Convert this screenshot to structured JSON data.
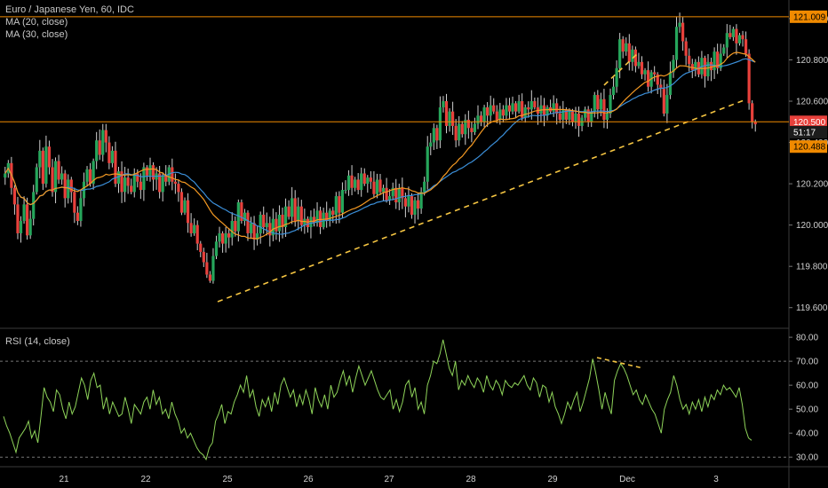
{
  "legend": {
    "title": "Euro / Japanese Yen, 60, IDC",
    "ma20": "MA (20, close)",
    "ma30": "MA (30, close)",
    "rsi": "RSI (14, close)"
  },
  "colors": {
    "up": "#26a65b",
    "down": "#e8413c",
    "ma20": "#f59a23",
    "ma30": "#3b8fd9",
    "hline": "#f08a00",
    "rsi": "#8fd45a",
    "trend": "#f5c542"
  },
  "chart_data": [
    {
      "type": "candlestick",
      "title": "Euro / Japanese Yen, 60, IDC",
      "ylim": [
        119.5,
        121.09
      ],
      "y_ticks": [
        "121.000",
        "120.800",
        "120.600",
        "120.400",
        "120.200",
        "120.000",
        "119.800",
        "119.600"
      ],
      "x_ticks": [
        "21",
        "22",
        "25",
        "26",
        "27",
        "28",
        "29",
        "Dec",
        "3"
      ],
      "horizontal_lines": [
        121.009,
        120.5
      ],
      "price_badges": [
        {
          "label": "121.009",
          "value": 121.009,
          "style": "orange"
        },
        {
          "label": "120.500",
          "value": 120.5,
          "style": "red"
        },
        {
          "label": "51:17",
          "value": 120.45,
          "style": "dark"
        },
        {
          "label": "120.488",
          "value": 120.38,
          "style": "orange"
        }
      ],
      "series": [
        {
          "name": "MA (20, close)"
        },
        {
          "name": "MA (30, close)"
        }
      ],
      "closes": [
        120.25,
        120.3,
        120.18,
        120.1,
        119.96,
        120.02,
        120.1,
        119.95,
        120.03,
        120.16,
        120.28,
        120.36,
        120.2,
        120.38,
        120.28,
        120.16,
        120.31,
        120.22,
        120.25,
        120.13,
        120.22,
        120.16,
        120.06,
        120.02,
        120.13,
        120.21,
        120.27,
        120.2,
        120.31,
        120.41,
        120.34,
        120.46,
        120.4,
        120.3,
        120.36,
        120.2,
        120.26,
        120.16,
        120.23,
        120.19,
        120.16,
        120.25,
        120.21,
        120.17,
        120.28,
        120.24,
        120.29,
        120.22,
        120.25,
        120.16,
        120.24,
        120.21,
        120.28,
        120.21,
        120.2,
        120.16,
        120.06,
        120.12,
        120.01,
        119.96,
        120.0,
        119.91,
        119.87,
        119.82,
        119.76,
        119.73,
        119.85,
        119.92,
        119.96,
        119.91,
        119.96,
        119.94,
        120.02,
        119.97,
        120.11,
        120.02,
        120.06,
        119.96,
        120.01,
        119.93,
        119.96,
        120.05,
        119.99,
        120.01,
        119.95,
        120.03,
        119.97,
        120.05,
        119.99,
        120.09,
        120.04,
        120.13,
        120.02,
        120.09,
        120.0,
        120.03,
        119.99,
        120.04,
        120.01,
        120.07,
        119.99,
        120.06,
        120.02,
        120.07,
        120.05,
        120.14,
        120.06,
        120.17,
        120.17,
        120.24,
        120.18,
        120.22,
        120.17,
        120.25,
        120.2,
        120.23,
        120.21,
        120.15,
        120.22,
        120.16,
        120.18,
        120.12,
        120.14,
        120.18,
        120.11,
        120.18,
        120.13,
        120.09,
        120.14,
        120.05,
        120.12,
        120.08,
        120.16,
        120.21,
        120.38,
        120.4,
        120.47,
        120.41,
        120.57,
        120.6,
        120.48,
        120.55,
        120.48,
        120.41,
        120.49,
        120.44,
        120.51,
        120.47,
        120.45,
        120.49,
        120.53,
        120.5,
        120.57,
        120.53,
        120.58,
        120.55,
        120.51,
        120.56,
        120.53,
        120.58,
        120.55,
        120.59,
        120.55,
        120.6,
        120.52,
        120.57,
        120.56,
        120.6,
        120.57,
        120.54,
        120.58,
        120.53,
        120.57,
        120.55,
        120.59,
        120.54,
        120.51,
        120.56,
        120.51,
        120.55,
        120.5,
        120.54,
        120.48,
        120.52,
        120.56,
        120.5,
        120.55,
        120.63,
        120.56,
        120.61,
        120.51,
        120.54,
        120.63,
        120.67,
        120.76,
        120.9,
        120.84,
        120.88,
        120.79,
        120.85,
        120.77,
        120.79,
        120.73,
        120.75,
        120.67,
        120.74,
        120.73,
        120.68,
        120.66,
        120.54,
        120.63,
        120.74,
        120.8,
        120.96,
        120.98,
        120.89,
        120.82,
        120.78,
        120.75,
        120.79,
        120.73,
        120.81,
        120.72,
        120.79,
        120.75,
        120.84,
        120.76,
        120.83,
        120.86,
        120.93,
        120.91,
        120.95,
        120.88,
        120.92,
        120.9,
        120.83,
        120.59,
        120.5,
        120.488
      ],
      "rsi": {
        "name": "RSI (14, close)",
        "ylim": [
          26,
          83
        ],
        "y_ticks": [
          "80.00",
          "70.00",
          "60.00",
          "50.00",
          "40.00",
          "30.00"
        ],
        "levels": [
          70,
          30
        ],
        "values": [
          47,
          43,
          40,
          36,
          32,
          38,
          40,
          42,
          45,
          38,
          41,
          36,
          47,
          59,
          55,
          53,
          49,
          58,
          56,
          50,
          46,
          53,
          48,
          51,
          57,
          63,
          60,
          54,
          62,
          65,
          59,
          60,
          50,
          55,
          48,
          53,
          50,
          47,
          48,
          55,
          50,
          44,
          52,
          50,
          48,
          53,
          55,
          50,
          58,
          52,
          55,
          48,
          50,
          46,
          53,
          48,
          45,
          40,
          42,
          38,
          40,
          37,
          34,
          32,
          31,
          29,
          34,
          36,
          45,
          48,
          52,
          44,
          49,
          48,
          53,
          56,
          60,
          57,
          64,
          55,
          58,
          51,
          47,
          54,
          51,
          55,
          49,
          57,
          52,
          60,
          63,
          59,
          55,
          58,
          51,
          56,
          52,
          58,
          54,
          48,
          59,
          54,
          51,
          56,
          50,
          60,
          55,
          57,
          62,
          66,
          60,
          64,
          57,
          63,
          68,
          64,
          60,
          63,
          66,
          62,
          58,
          55,
          54,
          56,
          58,
          50,
          54,
          49,
          53,
          60,
          62,
          55,
          59,
          50,
          53,
          48,
          60,
          64,
          70,
          69,
          73,
          79,
          73,
          67,
          64,
          70,
          58,
          62,
          60,
          64,
          61,
          59,
          63,
          61,
          57,
          64,
          60,
          58,
          62,
          60,
          56,
          62,
          60,
          59,
          61,
          60,
          62,
          64,
          60,
          58,
          63,
          61,
          55,
          60,
          59,
          53,
          57,
          51,
          48,
          44,
          48,
          53,
          50,
          54,
          57,
          49,
          53,
          58,
          63,
          71,
          65,
          58,
          50,
          57,
          52,
          48,
          62,
          66,
          69,
          67,
          64,
          60,
          56,
          58,
          54,
          52,
          56,
          53,
          50,
          48,
          44,
          40,
          50,
          54,
          57,
          64,
          60,
          54,
          50,
          52,
          48,
          53,
          50,
          54,
          49,
          55,
          51,
          56,
          54,
          58,
          56,
          60,
          58,
          59,
          57,
          55,
          59,
          52,
          42,
          38,
          37
        ]
      }
    }
  ]
}
